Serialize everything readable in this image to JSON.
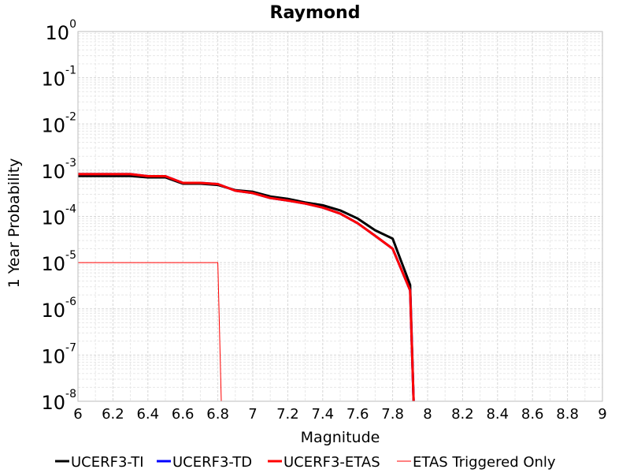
{
  "chart_data": {
    "type": "line",
    "title": "Raymond",
    "xlabel": "Magnitude",
    "ylabel": "1 Year Probability",
    "xlim": [
      6,
      9
    ],
    "ylim": [
      1e-08,
      1
    ],
    "yscale": "log",
    "grid": true,
    "legend_position": "bottom",
    "x_ticks": [
      "6",
      "6.2",
      "6.4",
      "6.6",
      "6.8",
      "7",
      "7.2",
      "7.4",
      "7.6",
      "7.8",
      "8",
      "8.2",
      "8.4",
      "8.6",
      "8.8",
      "9"
    ],
    "y_ticks": [
      {
        "base": "10",
        "exp": "0"
      },
      {
        "base": "10",
        "exp": "-1"
      },
      {
        "base": "10",
        "exp": "-2"
      },
      {
        "base": "10",
        "exp": "-3"
      },
      {
        "base": "10",
        "exp": "-4"
      },
      {
        "base": "10",
        "exp": "-5"
      },
      {
        "base": "10",
        "exp": "-6"
      },
      {
        "base": "10",
        "exp": "-7"
      },
      {
        "base": "10",
        "exp": "-8"
      }
    ],
    "series": [
      {
        "name": "UCERF3-TI",
        "color": "#000000",
        "x": [
          6.0,
          6.1,
          6.2,
          6.3,
          6.4,
          6.5,
          6.6,
          6.7,
          6.8,
          6.9,
          7.0,
          7.1,
          7.2,
          7.3,
          7.4,
          7.5,
          7.6,
          7.7,
          7.8,
          7.9,
          7.92
        ],
        "y": [
          0.00075,
          0.00075,
          0.00075,
          0.00075,
          0.0007,
          0.0007,
          0.00051,
          0.00051,
          0.00048,
          0.00037,
          0.00034,
          0.00027,
          0.00024,
          0.0002,
          0.000175,
          0.000135,
          9e-05,
          5e-05,
          3.3e-05,
          3.3e-06,
          1e-08
        ]
      },
      {
        "name": "UCERF3-TD",
        "color": "#0000ff",
        "x": [
          6.0,
          6.1,
          6.2,
          6.3,
          6.4,
          6.5,
          6.6,
          6.7,
          6.8,
          6.9,
          7.0,
          7.1,
          7.2,
          7.3,
          7.4,
          7.5,
          7.6,
          7.7,
          7.8,
          7.9,
          7.92
        ],
        "y": [
          0.00082,
          0.00082,
          0.00082,
          0.00082,
          0.00074,
          0.00074,
          0.00053,
          0.00053,
          0.0005,
          0.00036,
          0.00032,
          0.00025,
          0.00022,
          0.00019,
          0.000155,
          0.000115,
          7.1e-05,
          3.8e-05,
          2e-05,
          2.5e-06,
          1e-08
        ]
      },
      {
        "name": "UCERF3-ETAS",
        "color": "#ff0000",
        "x": [
          6.0,
          6.1,
          6.2,
          6.3,
          6.4,
          6.5,
          6.6,
          6.7,
          6.8,
          6.9,
          7.0,
          7.1,
          7.2,
          7.3,
          7.4,
          7.5,
          7.6,
          7.7,
          7.8,
          7.9,
          7.92
        ],
        "y": [
          0.00082,
          0.00082,
          0.00082,
          0.00082,
          0.00074,
          0.00074,
          0.00053,
          0.00053,
          0.0005,
          0.00036,
          0.00032,
          0.00025,
          0.00022,
          0.00019,
          0.000155,
          0.000115,
          7.1e-05,
          3.8e-05,
          2e-05,
          2.5e-06,
          1e-08
        ]
      },
      {
        "name": "ETAS Triggered Only",
        "color": "#ff0000",
        "x": [
          6.0,
          6.8,
          6.82
        ],
        "y": [
          1e-05,
          1e-05,
          1e-08
        ]
      }
    ],
    "series_styles": [
      {
        "width": 3
      },
      {
        "width": 3
      },
      {
        "width": 3
      },
      {
        "width": 1
      }
    ]
  }
}
